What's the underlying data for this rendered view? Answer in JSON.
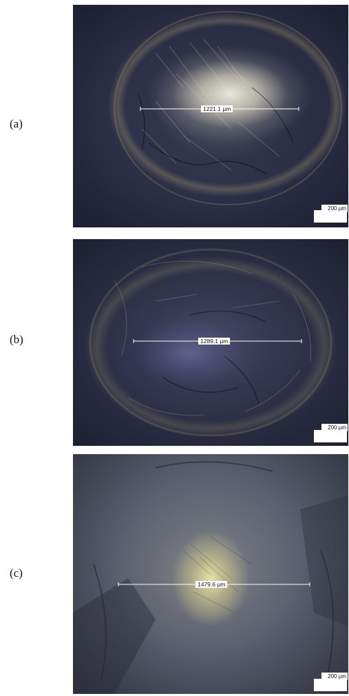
{
  "figure": {
    "panels": [
      {
        "label": "(a)",
        "measurement": "1221.1 µm",
        "scale_bar": "200 µm"
      },
      {
        "label": "(b)",
        "measurement": "1289.1 µm",
        "scale_bar": "200 µm"
      },
      {
        "label": "(c)",
        "measurement": "1479.6 µm",
        "scale_bar": "200 µm"
      }
    ]
  }
}
